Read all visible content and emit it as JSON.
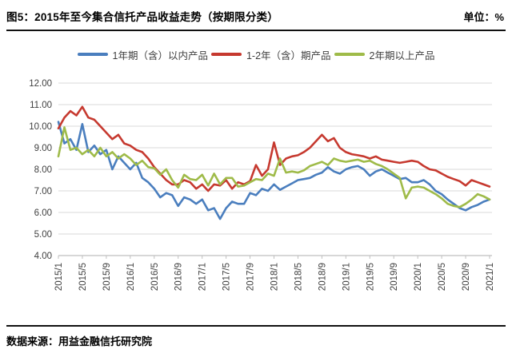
{
  "header": {
    "title": "图5：2015年至今集合信托产品收益走势（按期限分类）",
    "unit_label": "单位：%"
  },
  "footer": {
    "source": "数据来源：用益金融信托研究院"
  },
  "chart_data": {
    "type": "line",
    "title": "2015年至今集合信托产品收益走势（按期限分类）",
    "unit": "%",
    "grid": "horizontal",
    "legend_position": "top",
    "ylim": [
      4,
      12
    ],
    "ytick_labels": [
      "4.00",
      "5.00",
      "6.00",
      "7.00",
      "8.00",
      "9.00",
      "10.00",
      "11.00",
      "12.00"
    ],
    "x_tick_labels": [
      "2015/1",
      "2015/5",
      "2015/9",
      "2016/1",
      "2016/5",
      "2016/9",
      "2017/1",
      "2017/5",
      "2017/9",
      "2018/1",
      "2018/5",
      "2018/9",
      "2019/1",
      "2019/5",
      "2019/9",
      "2020/1",
      "2020/5",
      "2020/9",
      "2021/1"
    ],
    "x_tick_every": 4,
    "x": [
      "2015/1",
      "2015/2",
      "2015/3",
      "2015/4",
      "2015/5",
      "2015/6",
      "2015/7",
      "2015/8",
      "2015/9",
      "2015/10",
      "2015/11",
      "2015/12",
      "2016/1",
      "2016/2",
      "2016/3",
      "2016/4",
      "2016/5",
      "2016/6",
      "2016/7",
      "2016/8",
      "2016/9",
      "2016/10",
      "2016/11",
      "2016/12",
      "2017/1",
      "2017/2",
      "2017/3",
      "2017/4",
      "2017/5",
      "2017/6",
      "2017/7",
      "2017/8",
      "2017/9",
      "2017/10",
      "2017/11",
      "2017/12",
      "2018/1",
      "2018/2",
      "2018/3",
      "2018/4",
      "2018/5",
      "2018/6",
      "2018/7",
      "2018/8",
      "2018/9",
      "2018/10",
      "2018/11",
      "2018/12",
      "2019/1",
      "2019/2",
      "2019/3",
      "2019/4",
      "2019/5",
      "2019/6",
      "2019/7",
      "2019/8",
      "2019/9",
      "2019/10",
      "2019/11",
      "2019/12",
      "2020/1",
      "2020/2",
      "2020/3",
      "2020/4",
      "2020/5",
      "2020/6",
      "2020/7",
      "2020/8",
      "2020/9",
      "2020/10",
      "2020/11",
      "2020/12",
      "2021/1"
    ],
    "colors": {
      "grid": "#d9d9d9",
      "axis": "#bfbfbf",
      "tick_text": "#404040"
    },
    "series": [
      {
        "name": "1年期（含）以内产品",
        "color": "#4a7ebe",
        "values": [
          10.2,
          9.2,
          9.4,
          8.9,
          10.1,
          8.8,
          9.1,
          8.7,
          8.9,
          8.0,
          8.6,
          8.3,
          8.0,
          8.3,
          7.6,
          7.4,
          7.1,
          6.7,
          6.9,
          6.8,
          6.3,
          6.7,
          6.6,
          6.4,
          6.6,
          6.1,
          6.2,
          5.7,
          6.2,
          6.5,
          6.4,
          6.4,
          6.9,
          6.8,
          7.1,
          7.0,
          7.3,
          7.05,
          7.2,
          7.35,
          7.5,
          7.55,
          7.6,
          7.75,
          7.85,
          8.1,
          7.9,
          7.8,
          8.0,
          8.1,
          8.15,
          8.0,
          7.7,
          7.9,
          8.0,
          7.85,
          7.7,
          7.55,
          7.6,
          7.4,
          7.4,
          7.5,
          7.3,
          7.0,
          6.85,
          6.6,
          6.4,
          6.2,
          6.1,
          6.25,
          6.35,
          6.5,
          6.6
        ]
      },
      {
        "name": "1-2年（含）期产品",
        "color": "#c6392f",
        "values": [
          9.9,
          10.4,
          10.7,
          10.5,
          10.9,
          10.4,
          10.3,
          10.0,
          9.7,
          9.4,
          9.6,
          9.2,
          9.1,
          8.9,
          8.8,
          8.5,
          8.1,
          7.8,
          7.5,
          7.3,
          7.3,
          7.5,
          7.4,
          7.1,
          7.3,
          7.0,
          7.3,
          7.25,
          7.5,
          7.1,
          7.4,
          7.3,
          7.45,
          8.2,
          7.7,
          8.0,
          9.25,
          8.2,
          8.5,
          8.6,
          8.65,
          8.8,
          9.0,
          9.3,
          9.6,
          9.3,
          9.45,
          9.0,
          8.8,
          8.7,
          8.65,
          8.6,
          8.5,
          8.6,
          8.45,
          8.4,
          8.35,
          8.3,
          8.35,
          8.4,
          8.35,
          8.15,
          8.0,
          7.95,
          7.8,
          7.65,
          7.55,
          7.45,
          7.25,
          7.5,
          7.4,
          7.3,
          7.2
        ]
      },
      {
        "name": "2年期以上产品",
        "color": "#9fbb49",
        "values": [
          8.6,
          9.95,
          8.9,
          9.0,
          8.7,
          8.9,
          8.6,
          9.0,
          8.6,
          8.8,
          8.5,
          8.7,
          8.5,
          8.2,
          8.4,
          8.1,
          8.05,
          7.75,
          8.0,
          7.5,
          7.15,
          7.75,
          7.55,
          7.5,
          7.75,
          7.25,
          7.8,
          7.3,
          7.6,
          7.6,
          7.2,
          7.25,
          7.4,
          7.55,
          7.5,
          7.8,
          7.7,
          8.5,
          7.85,
          7.9,
          7.85,
          7.95,
          8.15,
          8.25,
          8.35,
          8.2,
          8.5,
          8.4,
          8.35,
          8.4,
          8.45,
          8.35,
          8.4,
          8.25,
          8.15,
          8.0,
          7.8,
          7.6,
          6.65,
          7.15,
          7.2,
          7.15,
          7.0,
          6.85,
          6.65,
          6.4,
          6.3,
          6.25,
          6.4,
          6.6,
          6.85,
          6.75,
          6.6
        ]
      }
    ]
  }
}
